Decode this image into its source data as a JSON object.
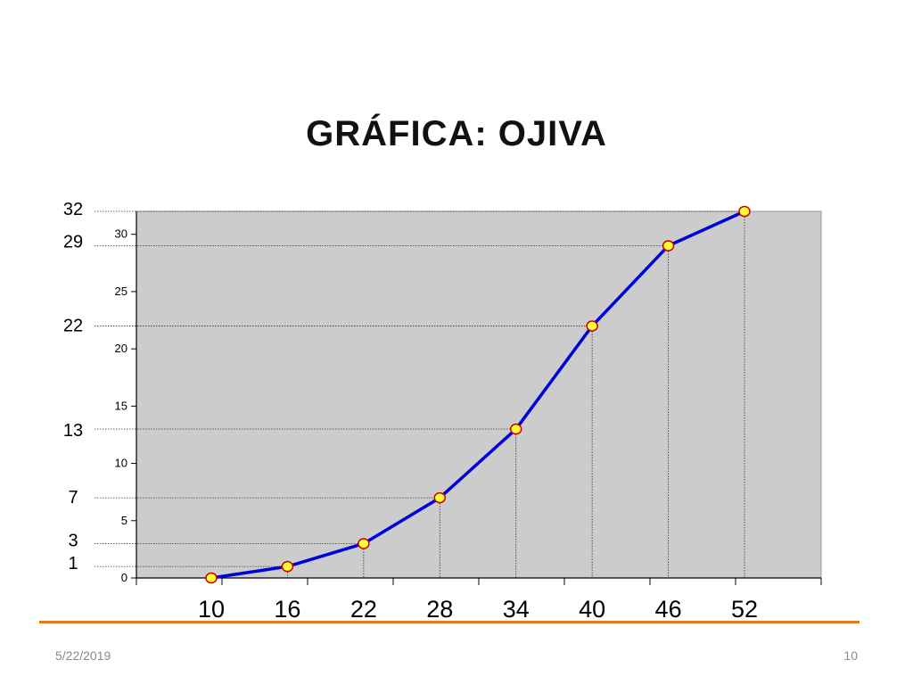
{
  "slide": {
    "title": "GRÁFICA:  OJIVA",
    "date": "5/22/2019",
    "page_number": "10"
  },
  "colors": {
    "plot_background": "#cccccc",
    "line": "#0000dd",
    "marker_fill": "#ffff33",
    "marker_edge": "#cc0000",
    "footer_line": "#e07b1a"
  },
  "chart_data": {
    "type": "line",
    "title": "GRÁFICA:  OJIVA",
    "x": [
      10,
      16,
      22,
      28,
      34,
      40,
      46,
      52
    ],
    "y": [
      0,
      1,
      3,
      7,
      13,
      22,
      29,
      32
    ],
    "x_tick_labels": [
      "10",
      "16",
      "22",
      "28",
      "34",
      "40",
      "46",
      "52"
    ],
    "y_ticks": [
      0,
      5,
      10,
      15,
      20,
      25,
      30
    ],
    "ylim": [
      0,
      32
    ],
    "annotated_values": [
      32,
      29,
      22,
      13,
      7,
      3,
      1
    ],
    "xlabel": "",
    "ylabel": "",
    "grid": false,
    "legend": "none"
  }
}
